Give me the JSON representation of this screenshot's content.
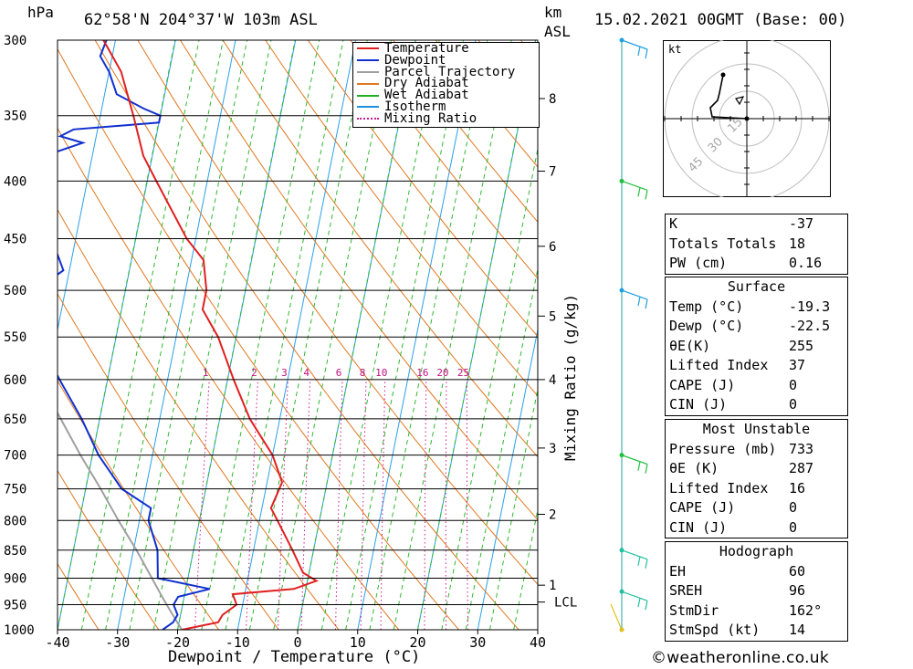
{
  "header": {
    "location": "62°58'N  204°37'W  103m  ASL",
    "datetime": "15.02.2021  00GMT  (Base: 00)",
    "unit_left": "hPa",
    "unit_right_1": "km",
    "unit_right_2": "ASL"
  },
  "chart_data": {
    "type": "skew-t",
    "xlabel": "Dewpoint / Temperature (°C)",
    "ylabel_right": "Mixing Ratio (g/kg)",
    "x_ticks": [
      -40,
      -30,
      -20,
      -10,
      0,
      10,
      20,
      30,
      40
    ],
    "pressure_levels": [
      300,
      350,
      400,
      450,
      500,
      550,
      600,
      650,
      700,
      750,
      800,
      850,
      900,
      950,
      1000
    ],
    "km_ticks": [
      {
        "label": "1",
        "p": 913
      },
      {
        "label": "2",
        "p": 790
      },
      {
        "label": "3",
        "p": 690
      },
      {
        "label": "4",
        "p": 600
      },
      {
        "label": "5",
        "p": 527
      },
      {
        "label": "6",
        "p": 457
      },
      {
        "label": "7",
        "p": 392
      },
      {
        "label": "8",
        "p": 338
      }
    ],
    "lcl": {
      "label": "LCL",
      "p": 945
    },
    "mixing_ratios": [
      1,
      2,
      3,
      4,
      6,
      8,
      10,
      16,
      20,
      25
    ],
    "legend": [
      {
        "label": "Temperature",
        "color": "#e02020"
      },
      {
        "label": "Dewpoint",
        "color": "#1030d0"
      },
      {
        "label": "Parcel Trajectory",
        "color": "#a0a0a0"
      },
      {
        "label": "Dry Adiabat",
        "color": "#e07820"
      },
      {
        "label": "Wet Adiabat",
        "color": "#20b020"
      },
      {
        "label": "Isotherm",
        "color": "#2090e0"
      },
      {
        "label": "Mixing Ratio",
        "color": "#d01890"
      }
    ],
    "temperature_profile": [
      [
        1000,
        -19.3
      ],
      [
        985,
        -13.5
      ],
      [
        970,
        -13.0
      ],
      [
        950,
        -11.0
      ],
      [
        930,
        -12.0
      ],
      [
        920,
        -2.0
      ],
      [
        905,
        1.5
      ],
      [
        890,
        -1.0
      ],
      [
        850,
        -3.5
      ],
      [
        800,
        -7.0
      ],
      [
        780,
        -8.5
      ],
      [
        760,
        -8.0
      ],
      [
        740,
        -7.5
      ],
      [
        700,
        -10.0
      ],
      [
        650,
        -15.0
      ],
      [
        600,
        -19.0
      ],
      [
        550,
        -23.0
      ],
      [
        520,
        -26.5
      ],
      [
        500,
        -26.5
      ],
      [
        470,
        -28.0
      ],
      [
        450,
        -31.5
      ],
      [
        400,
        -38.5
      ],
      [
        380,
        -41.5
      ],
      [
        350,
        -44.5
      ],
      [
        320,
        -48.0
      ],
      [
        300,
        -52.0
      ]
    ],
    "dewpoint_profile": [
      [
        1000,
        -22.5
      ],
      [
        985,
        -21.0
      ],
      [
        970,
        -20.5
      ],
      [
        950,
        -21.5
      ],
      [
        935,
        -21.0
      ],
      [
        920,
        -16.0
      ],
      [
        900,
        -25.0
      ],
      [
        850,
        -26.0
      ],
      [
        800,
        -28.5
      ],
      [
        780,
        -28.5
      ],
      [
        750,
        -34.0
      ],
      [
        700,
        -39.0
      ],
      [
        650,
        -43.0
      ],
      [
        600,
        -48.0
      ],
      [
        550,
        -53.0
      ],
      [
        530,
        -51.0
      ],
      [
        515,
        -55.0
      ],
      [
        500,
        -55.0
      ],
      [
        480,
        -51.0
      ],
      [
        450,
        -54.0
      ],
      [
        400,
        -59.0
      ],
      [
        380,
        -58.0
      ],
      [
        370,
        -52.0
      ],
      [
        365,
        -56.0
      ],
      [
        360,
        -54.0
      ],
      [
        355,
        -40.0
      ],
      [
        350,
        -40.0
      ],
      [
        345,
        -43.0
      ],
      [
        335,
        -48.0
      ],
      [
        320,
        -50.0
      ],
      [
        310,
        -52.0
      ],
      [
        300,
        -51.5
      ]
    ],
    "parcel_profile": [
      [
        1000,
        -19.3
      ],
      [
        945,
        -23.0
      ],
      [
        900,
        -26.0
      ],
      [
        850,
        -29.5
      ],
      [
        800,
        -33.5
      ],
      [
        750,
        -37.5
      ],
      [
        700,
        -42.0
      ],
      [
        650,
        -46.5
      ],
      [
        600,
        -51.5
      ],
      [
        550,
        -57.0
      ],
      [
        520,
        -60.5
      ]
    ],
    "wind_barbs": [
      {
        "p": 300,
        "color": "#20a0e0"
      },
      {
        "p": 400,
        "color": "#20c040"
      },
      {
        "p": 500,
        "color": "#20a0e0"
      },
      {
        "p": 700,
        "color": "#20c040"
      },
      {
        "p": 850,
        "color": "#20c0a0"
      },
      {
        "p": 925,
        "color": "#20c0a0"
      },
      {
        "p": 1000,
        "color": "#e0c020"
      }
    ]
  },
  "hodograph": {
    "unit": "kt",
    "ring_labels": [
      "15",
      "30",
      "45"
    ]
  },
  "indices": {
    "basic": [
      {
        "label": "K",
        "value": "-37"
      },
      {
        "label": "Totals Totals",
        "value": "18"
      },
      {
        "label": "PW (cm)",
        "value": "0.16"
      }
    ],
    "surface_title": "Surface",
    "surface": [
      {
        "label": "Temp (°C)",
        "value": "-19.3"
      },
      {
        "label": "Dewp (°C)",
        "value": "-22.5"
      },
      {
        "label": "θE(K)",
        "value": "255"
      },
      {
        "label": "Lifted Index",
        "value": "37"
      },
      {
        "label": "CAPE (J)",
        "value": "0"
      },
      {
        "label": "CIN (J)",
        "value": "0"
      }
    ],
    "mu_title": "Most Unstable",
    "most_unstable": [
      {
        "label": "Pressure (mb)",
        "value": "733"
      },
      {
        "label": "θE (K)",
        "value": "287"
      },
      {
        "label": "Lifted Index",
        "value": "16"
      },
      {
        "label": "CAPE (J)",
        "value": "0"
      },
      {
        "label": "CIN (J)",
        "value": "0"
      }
    ],
    "hodo_title": "Hodograph",
    "hodograph": [
      {
        "label": "EH",
        "value": "60"
      },
      {
        "label": "SREH",
        "value": "96"
      },
      {
        "label": "StmDir",
        "value": "162°"
      },
      {
        "label": "StmSpd (kt)",
        "value": "14"
      }
    ]
  },
  "copyright": "©weatheronline.co.uk"
}
